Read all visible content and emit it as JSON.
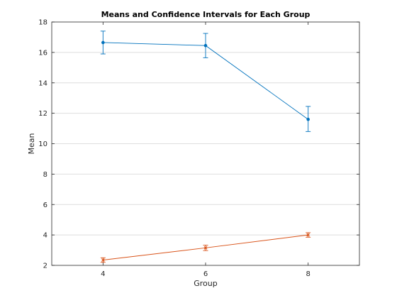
{
  "chart_data": {
    "type": "line",
    "title": "Means and Confidence Intervals for Each Group",
    "xlabel": "Group",
    "ylabel": "Mean",
    "xlim": [
      3,
      9
    ],
    "ylim": [
      2,
      18
    ],
    "xticks": [
      4,
      6,
      8
    ],
    "yticks": [
      2,
      4,
      6,
      8,
      10,
      12,
      14,
      16,
      18
    ],
    "grid": "y-major",
    "legend": "none",
    "series": [
      {
        "color": "#0072BD",
        "marker": "dot",
        "x": [
          4,
          6,
          8
        ],
        "y": [
          16.65,
          16.45,
          11.6
        ],
        "lower": [
          15.9,
          15.65,
          10.8
        ],
        "upper": [
          17.4,
          17.25,
          12.45
        ]
      },
      {
        "color": "#D95319",
        "marker": "x",
        "x": [
          4,
          6,
          8
        ],
        "y": [
          2.35,
          3.15,
          4.0
        ],
        "lower": [
          2.2,
          2.97,
          3.85
        ],
        "upper": [
          2.5,
          3.33,
          4.15
        ]
      }
    ]
  }
}
